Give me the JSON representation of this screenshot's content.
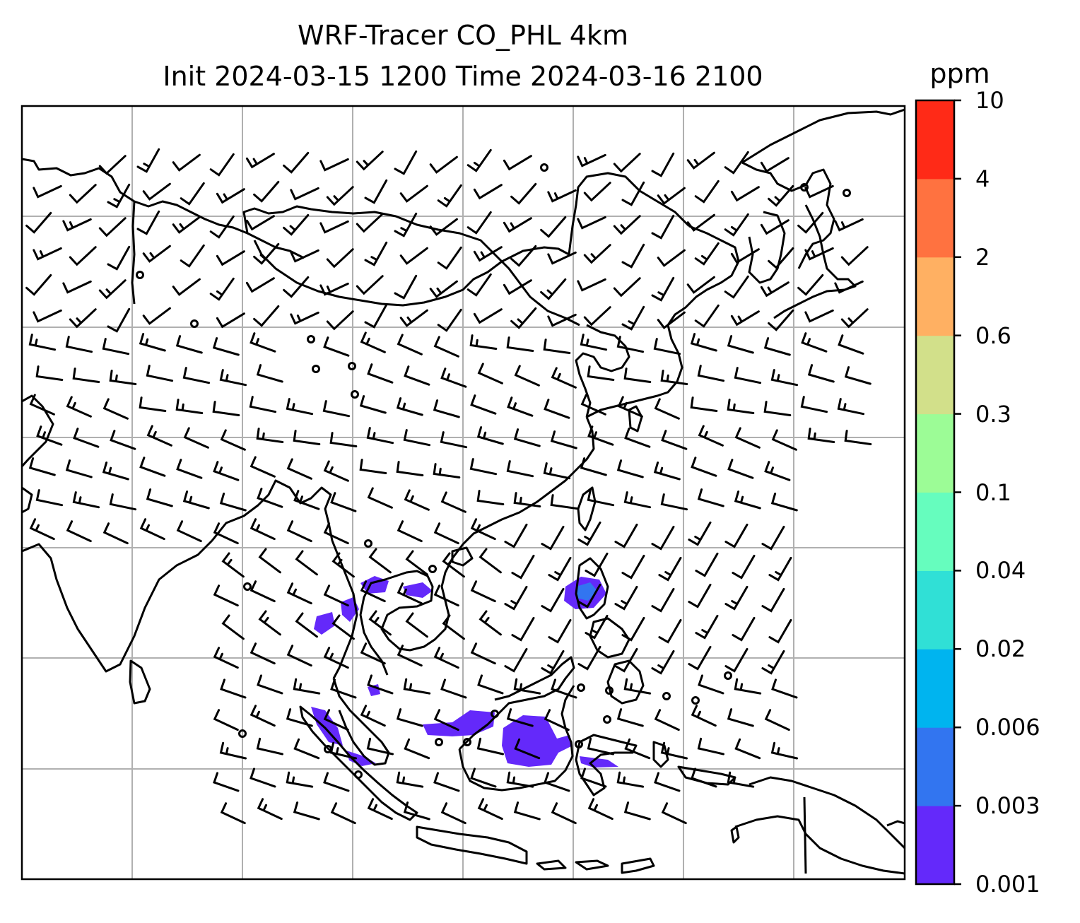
{
  "title": {
    "line1": "WRF-Tracer CO_PHL 4km",
    "line2": "Init 2024-03-15 1200 Time 2024-03-16 2100"
  },
  "colorbar": {
    "unit": "ppm",
    "levels": [
      "0.001",
      "0.003",
      "0.006",
      "0.02",
      "0.04",
      "0.1",
      "0.3",
      "0.6",
      "2",
      "4",
      "10"
    ],
    "colors": [
      "#6429fa",
      "#3275f0",
      "#00b4ef",
      "#30e0d6",
      "#66fdbe",
      "#9cfc96",
      "#d2e08a",
      "#ffb062",
      "#ff7240",
      "#ff2a17"
    ]
  },
  "map": {
    "region": "Southeast Asia / Maritime Continent",
    "coastline_color": "#000000",
    "gridline_color": "#b0b0b0",
    "tracer_color": "#6429fa",
    "tracer_color_dense": "#3275f0"
  }
}
